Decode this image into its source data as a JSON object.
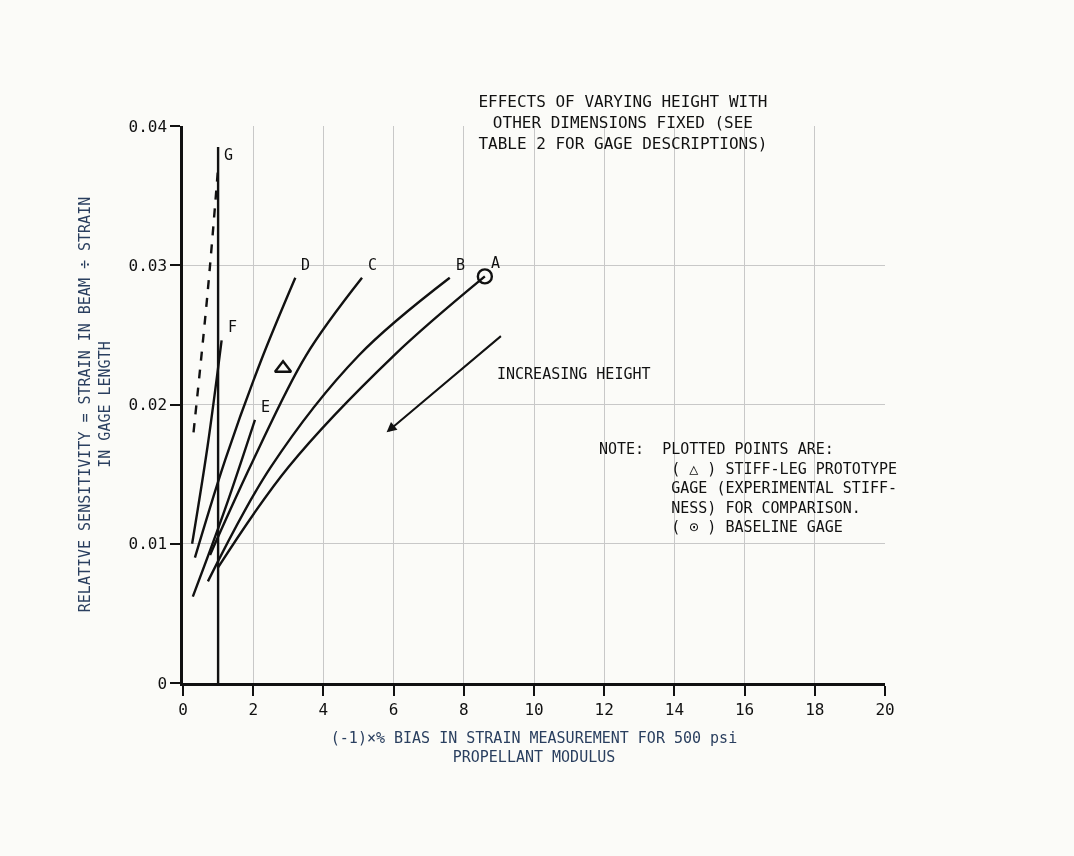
{
  "chart_data": {
    "type": "line",
    "title": "EFFECTS OF VARYING HEIGHT WITH\nOTHER DIMENSIONS FIXED (SEE\nTABLE 2 FOR GAGE DESCRIPTIONS)",
    "xlabel": "(-1)×% BIAS IN STRAIN MEASUREMENT FOR 500 psi\nPROPELLANT MODULUS",
    "ylabel": "RELATIVE SENSITIVITY = STRAIN IN BEAM ÷ STRAIN\nIN GAGE LENGTH",
    "xlim": [
      0,
      20
    ],
    "xticks": [
      0,
      2,
      4,
      6,
      8,
      10,
      12,
      14,
      16,
      18,
      20
    ],
    "ylim": [
      0,
      0.04
    ],
    "yticks": [
      0,
      0.01,
      0.02,
      0.03,
      0.04
    ],
    "grid": true,
    "marker": "none",
    "line_style": "solid",
    "series": [
      {
        "name": "A",
        "color": "#111111",
        "x": [
          1.0,
          3,
          6,
          8.6
        ],
        "values": [
          0.0083,
          0.0155,
          0.0235,
          0.0292
        ]
      },
      {
        "name": "B",
        "color": "#111111",
        "x": [
          0.71,
          2.5,
          5,
          7.6
        ],
        "values": [
          0.0073,
          0.0155,
          0.0235,
          0.0291
        ]
      },
      {
        "name": "C",
        "color": "#111111",
        "x": [
          0.77,
          2,
          3.5,
          5.1
        ],
        "values": [
          0.0092,
          0.016,
          0.0235,
          0.0291
        ]
      },
      {
        "name": "D",
        "color": "#111111",
        "x": [
          0.34,
          1.2,
          2.2,
          3.2
        ],
        "values": [
          0.009,
          0.016,
          0.023,
          0.0291
        ]
      },
      {
        "name": "E",
        "color": "#111111",
        "x": [
          0.28,
          1.2,
          2.05
        ],
        "values": [
          0.0062,
          0.0125,
          0.0189
        ]
      },
      {
        "name": "F",
        "color": "#111111",
        "x": [
          0.26,
          0.7,
          1.1
        ],
        "values": [
          0.01,
          0.017,
          0.0246
        ]
      },
      {
        "name": "G",
        "color": "#111111",
        "line_style": "dashed",
        "x": [
          0.3,
          0.7,
          1.0
        ],
        "values": [
          0.018,
          0.028,
          0.037
        ]
      },
      {
        "color": "#111111",
        "x": [
          1,
          1
        ],
        "values": [
          0,
          0.0385
        ]
      },
      {
        "type": "scatter",
        "marker": "triangle",
        "color": "#111111",
        "x": [
          2.85
        ],
        "values": [
          0.0226
        ]
      },
      {
        "type": "scatter",
        "marker": "circle",
        "color": "#111111",
        "x": [
          8.6
        ],
        "values": [
          0.0292
        ]
      }
    ],
    "annotations": [
      "INCREASING HEIGHT",
      "NOTE:  PLOTTED POINTS ARE:\n        ( △ ) STIFF-LEG PROTOTYPE\n        GAGE (EXPERIMENTAL STIFF-\n        NESS) FOR COMPARISON.\n        ( ⊙ ) BASELINE GAGE"
    ]
  }
}
